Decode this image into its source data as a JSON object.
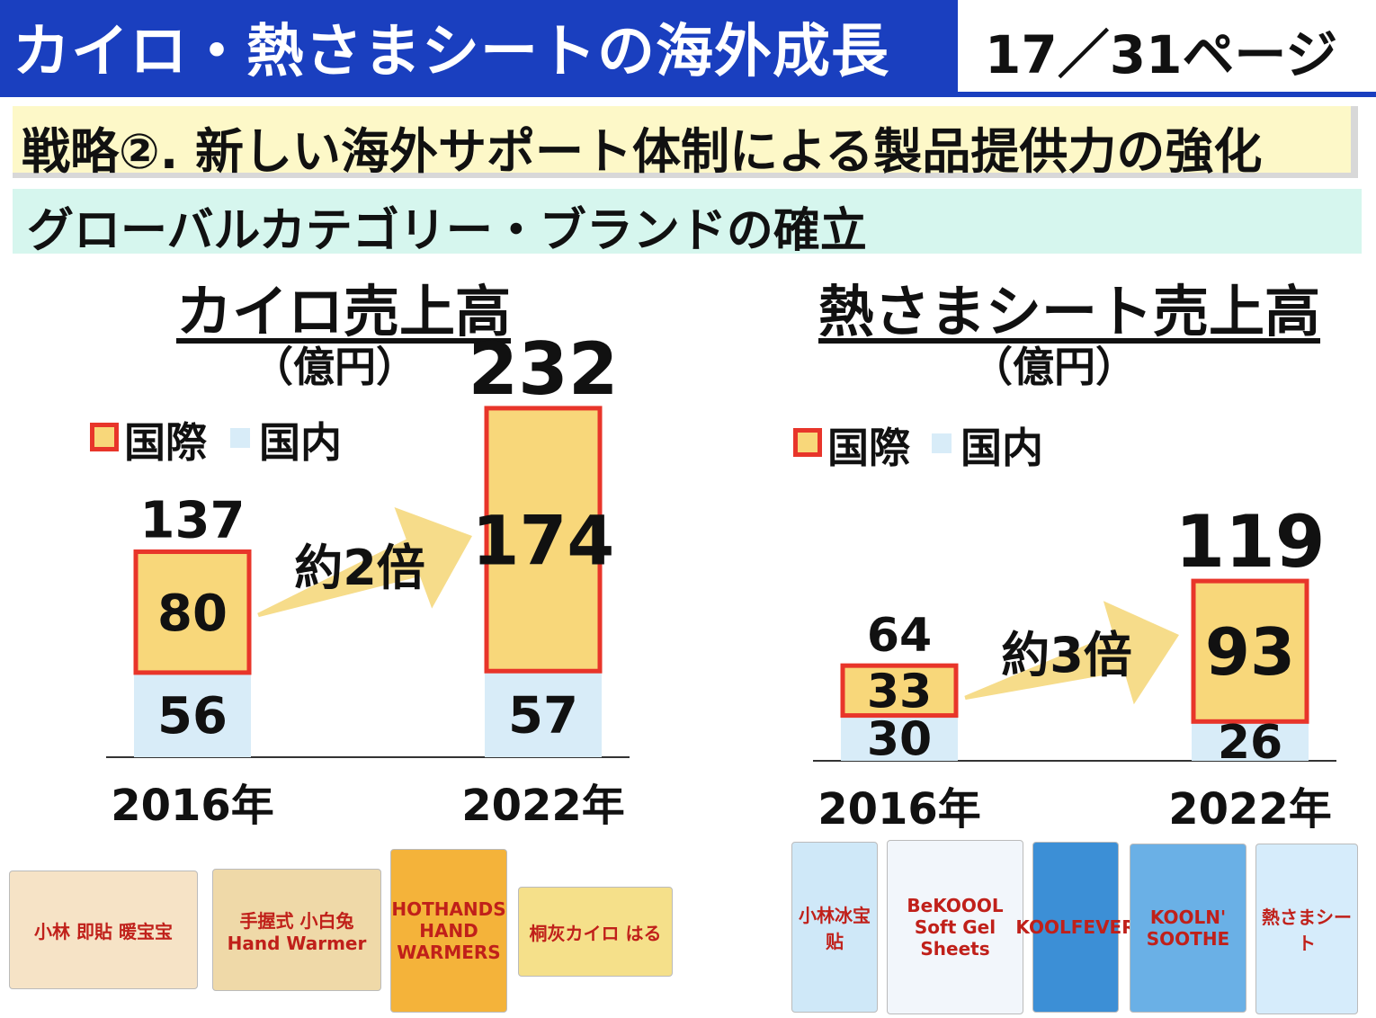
{
  "header": {
    "title": "カイロ・熱さまシートの海外成長",
    "page": "17／31ページ"
  },
  "strategy": "戦略②. 新しい海外サポート体制による製品提供力の強化",
  "subtitle": "グローバルカテゴリー・ブランドの確立",
  "colors": {
    "header_blue": "#1a3fbf",
    "international_fill": "#f8d77a",
    "international_border": "#e8352a",
    "domestic_fill": "#d8ecf8",
    "arrow": "#f6dc8a"
  },
  "chart_data": [
    {
      "type": "bar",
      "stacked": true,
      "title": "カイロ売上高",
      "unit": "（億円）",
      "legend": [
        "国際",
        "国内"
      ],
      "categories": [
        "2016年",
        "2022年"
      ],
      "series": [
        {
          "name": "国際",
          "values": [
            80,
            174
          ]
        },
        {
          "name": "国内",
          "values": [
            56,
            57
          ]
        }
      ],
      "totals": [
        137,
        232
      ],
      "annotation": "約2倍"
    },
    {
      "type": "bar",
      "stacked": true,
      "title": "熱さまシート売上高",
      "unit": "（億円）",
      "legend": [
        "国際",
        "国内"
      ],
      "categories": [
        "2016年",
        "2022年"
      ],
      "series": [
        {
          "name": "国際",
          "values": [
            33,
            93
          ]
        },
        {
          "name": "国内",
          "values": [
            30,
            26
          ]
        }
      ],
      "totals": [
        64,
        119
      ],
      "annotation": "約3倍"
    }
  ],
  "products_kairo": [
    {
      "label": "小林 即貼 暖宝宝",
      "icon": "product-package-nuanbaobao"
    },
    {
      "label": "手握式 小白兔 Hand Warmer",
      "icon": "product-package-xiaobaitu"
    },
    {
      "label": "HOTHANDS HAND WARMERS",
      "icon": "product-package-hothands"
    },
    {
      "label": "桐灰カイロ はる",
      "icon": "product-package-kiribai"
    }
  ],
  "products_sheet": [
    {
      "label": "小林冰宝贴",
      "icon": "product-package-bingbaotie"
    },
    {
      "label": "BeKOOOL Soft Gel Sheets",
      "icon": "product-package-bekoool"
    },
    {
      "label": "KOOLFEVER",
      "icon": "product-package-koolfever"
    },
    {
      "label": "KOOLN' SOOTHE",
      "icon": "product-package-koolnsoothe"
    },
    {
      "label": "熱さまシート",
      "icon": "product-package-netsusama"
    }
  ]
}
